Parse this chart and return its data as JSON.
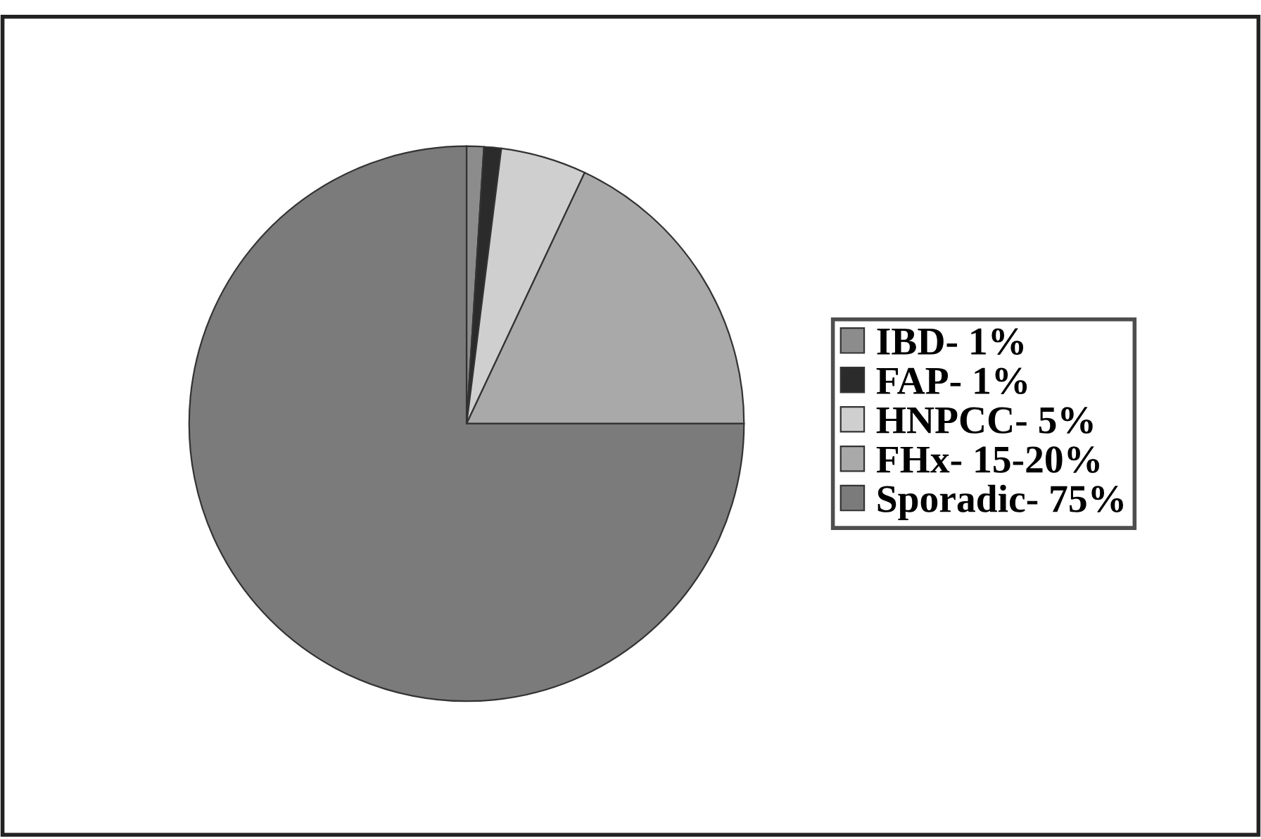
{
  "chart_data": {
    "type": "pie",
    "categories": [
      "IBD- 1%",
      "FAP- 1%",
      "HNPCC- 5%",
      "FHx- 15-20%",
      "Sporadic- 75%"
    ],
    "values": [
      1,
      1,
      5,
      18,
      75
    ],
    "colors": [
      "#8c8c8c",
      "#2b2b2b",
      "#cfcfcf",
      "#a9a9a9",
      "#7b7b7b"
    ],
    "legend": "right"
  }
}
